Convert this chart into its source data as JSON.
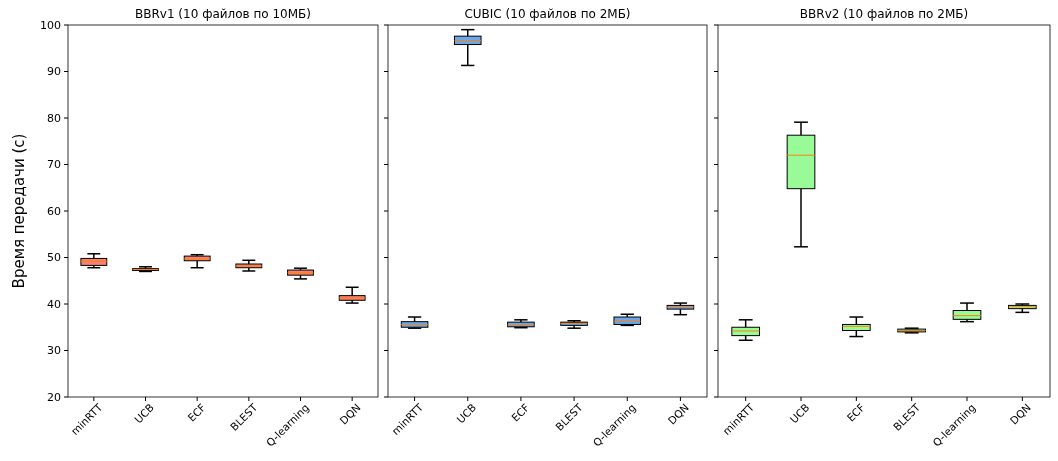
{
  "chart_data": [
    {
      "type": "box",
      "title": "BBRv1 (10 файлов по 10МБ)",
      "ylabel": "Время передачи (с)",
      "categories": [
        "minRTT",
        "UCB",
        "ECF",
        "BLEST",
        "Q-learning",
        "DQN"
      ],
      "ylim": [
        20,
        100
      ],
      "yticks": [
        20,
        30,
        40,
        50,
        60,
        70,
        80,
        90,
        100
      ],
      "series": [
        {
          "color": "#fa8072",
          "boxes": [
            {
              "low": 47.8,
              "q1": 48.3,
              "median": 49.2,
              "q3": 49.8,
              "high": 50.8
            },
            {
              "low": 47.0,
              "q1": 47.2,
              "median": 47.4,
              "q3": 47.6,
              "high": 48.0
            },
            {
              "low": 47.8,
              "q1": 49.3,
              "median": 49.7,
              "q3": 50.3,
              "high": 50.6
            },
            {
              "low": 47.1,
              "q1": 47.8,
              "median": 48.2,
              "q3": 48.6,
              "high": 49.4
            },
            {
              "low": 45.4,
              "q1": 46.2,
              "median": 46.7,
              "q3": 47.3,
              "high": 47.7
            },
            {
              "low": 40.2,
              "q1": 40.8,
              "median": 41.3,
              "q3": 41.8,
              "high": 43.6
            }
          ]
        }
      ]
    },
    {
      "type": "box",
      "title": "CUBIC (10 файлов по 2МБ)",
      "categories": [
        "minRTT",
        "UCB",
        "ECF",
        "BLEST",
        "Q-learning",
        "DQN"
      ],
      "ylim": [
        20,
        100
      ],
      "yticks": [
        20,
        30,
        40,
        50,
        60,
        70,
        80,
        90,
        100
      ],
      "tick_labels": "x",
      "series": [
        {
          "color": "#6aa8e8",
          "boxes": [
            {
              "low": 34.8,
              "q1": 35.0,
              "median": 35.6,
              "q3": 36.2,
              "high": 37.2
            },
            {
              "low": 91.3,
              "q1": 95.8,
              "median": 96.6,
              "q3": 97.6,
              "high": 99.0
            },
            {
              "low": 34.9,
              "q1": 35.1,
              "median": 35.5,
              "q3": 36.1,
              "high": 36.6
            },
            {
              "low": 34.8,
              "q1": 35.4,
              "median": 35.8,
              "q3": 36.1,
              "high": 36.4
            },
            {
              "low": 35.4,
              "q1": 35.6,
              "median": 36.3,
              "q3": 37.2,
              "high": 37.8
            },
            {
              "low": 37.7,
              "q1": 38.9,
              "median": 39.3,
              "q3": 39.7,
              "high": 40.2
            }
          ]
        }
      ]
    },
    {
      "type": "box",
      "title": "BBRv2 (10 файлов по 2МБ)",
      "categories": [
        "minRTT",
        "UCB",
        "ECF",
        "BLEST",
        "Q-learning",
        "DQN"
      ],
      "ylim": [
        20,
        100
      ],
      "yticks": [
        20,
        30,
        40,
        50,
        60,
        70,
        80,
        90,
        100
      ],
      "tick_labels": "x",
      "series": [
        {
          "color": "#98fb98",
          "boxes": [
            {
              "low": 32.2,
              "q1": 33.2,
              "median": 34.2,
              "q3": 35.0,
              "high": 36.6
            },
            {
              "low": 52.3,
              "q1": 64.8,
              "median": 72.0,
              "q3": 76.3,
              "high": 79.1
            },
            {
              "low": 33.0,
              "q1": 34.3,
              "median": 35.2,
              "q3": 35.6,
              "high": 37.2
            },
            {
              "low": 33.8,
              "q1": 34.0,
              "median": 34.3,
              "q3": 34.6,
              "high": 34.8
            },
            {
              "low": 36.2,
              "q1": 36.7,
              "median": 37.5,
              "q3": 38.6,
              "high": 40.2
            },
            {
              "low": 38.2,
              "q1": 39.0,
              "median": 39.4,
              "q3": 39.7,
              "high": 40.0
            }
          ]
        }
      ]
    }
  ]
}
